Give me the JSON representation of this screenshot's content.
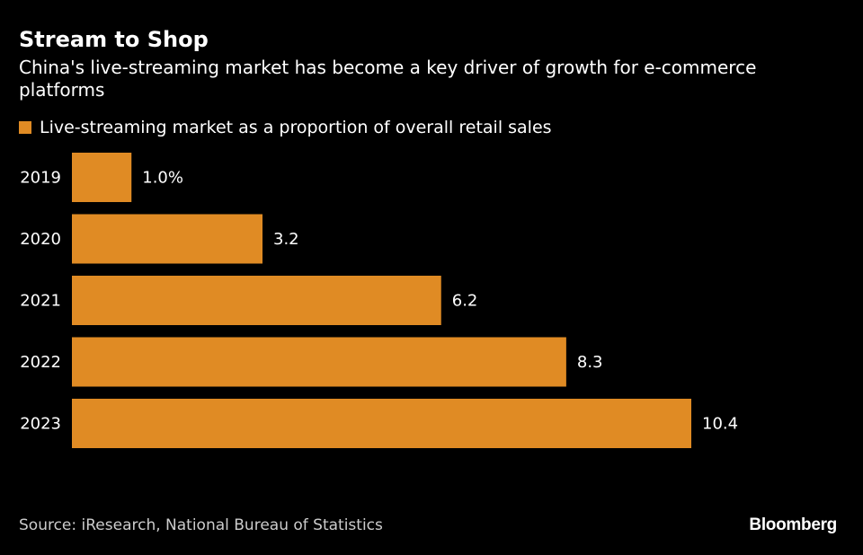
{
  "header": {
    "title": "Stream to Shop",
    "subtitle": "China's live-streaming market has become a key driver of growth for e-commerce platforms"
  },
  "footer": {
    "source": "Source: iResearch, National Bureau of Statistics",
    "brand": "Bloomberg"
  },
  "colors": {
    "bar": "#e08b24",
    "background": "#000000",
    "text": "#ffffff"
  },
  "chart_data": {
    "type": "bar",
    "orientation": "horizontal",
    "title": "Stream to Shop",
    "subtitle": "China's live-streaming market has become a key driver of growth for e-commerce platforms",
    "xlabel": "",
    "ylabel": "",
    "grid": false,
    "legend": {
      "position": "top-left",
      "entries": [
        "Live-streaming market as a proportion of overall retail sales"
      ]
    },
    "categories": [
      "2019",
      "2020",
      "2021",
      "2022",
      "2023"
    ],
    "series": [
      {
        "name": "Live-streaming market as a proportion of overall retail sales",
        "values": [
          1.0,
          3.2,
          6.2,
          8.3,
          10.4
        ],
        "unit": "%"
      }
    ],
    "data_labels": [
      "1.0%",
      "3.2",
      "6.2",
      "8.3",
      "10.4"
    ],
    "xlim": [
      0,
      10.4
    ]
  }
}
